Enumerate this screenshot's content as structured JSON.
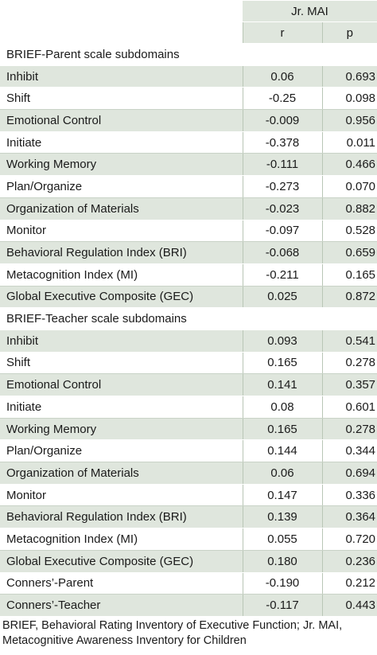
{
  "header": {
    "group": "Jr. MAI",
    "col_r": "r",
    "col_p": "p"
  },
  "parent_section": {
    "title": "BRIEF-Parent scale subdomains",
    "rows": [
      {
        "label": "Inhibit",
        "r": "0.06",
        "p": "0.693"
      },
      {
        "label": "Shift",
        "r": "-0.25",
        "p": "0.098"
      },
      {
        "label": "Emotional Control",
        "r": "-0.009",
        "p": "0.956"
      },
      {
        "label": "Initiate",
        "r": "-0.378",
        "p": "0.011"
      },
      {
        "label": "Working Memory",
        "r": "-0.111",
        "p": "0.466"
      },
      {
        "label": "Plan/Organize",
        "r": "-0.273",
        "p": "0.070"
      },
      {
        "label": "Organization of Materials",
        "r": "-0.023",
        "p": "0.882"
      },
      {
        "label": "Monitor",
        "r": "-0.097",
        "p": "0.528"
      },
      {
        "label": "Behavioral Regulation Index (BRI)",
        "r": "-0.068",
        "p": "0.659"
      },
      {
        "label": "Metacognition Index (MI)",
        "r": "-0.211",
        "p": "0.165"
      },
      {
        "label": "Global Executive Composite (GEC)",
        "r": "0.025",
        "p": "0.872"
      }
    ]
  },
  "teacher_section": {
    "title": "BRIEF-Teacher scale subdomains",
    "rows": [
      {
        "label": "Inhibit",
        "r": "0.093",
        "p": "0.541"
      },
      {
        "label": "Shift",
        "r": "0.165",
        "p": "0.278"
      },
      {
        "label": "Emotional Control",
        "r": "0.141",
        "p": "0.357"
      },
      {
        "label": "Initiate",
        "r": "0.08",
        "p": "0.601"
      },
      {
        "label": "Working Memory",
        "r": "0.165",
        "p": "0.278"
      },
      {
        "label": "Plan/Organize",
        "r": "0.144",
        "p": "0.344"
      },
      {
        "label": "Organization of Materials",
        "r": "0.06",
        "p": "0.694"
      },
      {
        "label": "Monitor",
        "r": "0.147",
        "p": "0.336"
      },
      {
        "label": "Behavioral Regulation Index (BRI)",
        "r": "0.139",
        "p": "0.364"
      },
      {
        "label": "Metacognition Index (MI)",
        "r": "0.055",
        "p": "0.720"
      },
      {
        "label": "Global Executive Composite (GEC)",
        "r": "0.180",
        "p": "0.236"
      },
      {
        "label": "Conners’-Parent",
        "r": "-0.190",
        "p": "0.212"
      },
      {
        "label": "Conners’-Teacher",
        "r": "-0.117",
        "p": "0.443"
      }
    ]
  },
  "footnote": "BRIEF, Behavioral Rating Inventory of Executive Function; Jr. MAI, Metacognitive Awareness Inventory for Children"
}
